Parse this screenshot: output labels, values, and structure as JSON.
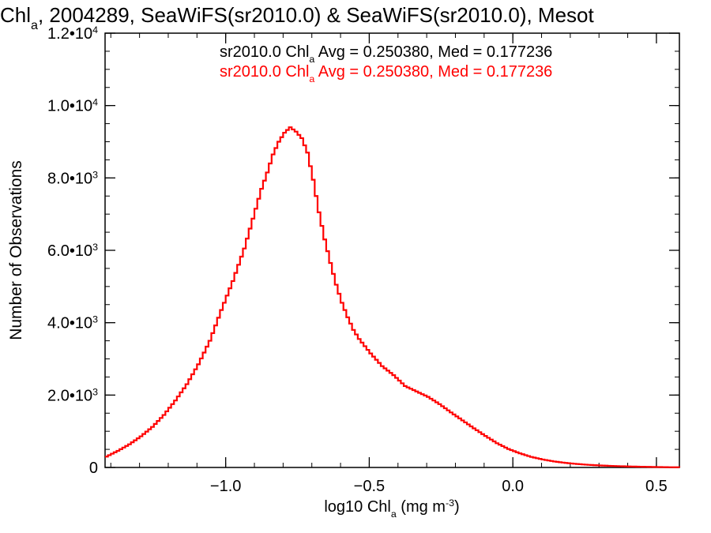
{
  "chart_data": {
    "type": "line",
    "title": {
      "parts": [
        {
          "text": "Chl",
          "style": "normal"
        },
        {
          "text": "a",
          "style": "sub"
        },
        {
          "text": ", 2004289, SeaWiFS(sr2010.0) & SeaWiFS(sr2010.0), Mesot",
          "style": "normal"
        }
      ]
    },
    "xlabel": {
      "parts": [
        {
          "text": "log10 Chl",
          "style": "normal"
        },
        {
          "text": "a",
          "style": "sub"
        },
        {
          "text": " (mg m",
          "style": "normal"
        },
        {
          "text": "-3",
          "style": "sup"
        },
        {
          "text": ")",
          "style": "normal"
        }
      ]
    },
    "ylabel": "Number of Observations",
    "xlim": [
      -1.42,
      0.58
    ],
    "ylim": [
      0,
      12000
    ],
    "x_ticks": [
      {
        "value": -1.0,
        "label": "−1.0"
      },
      {
        "value": -0.5,
        "label": "−0.5"
      },
      {
        "value": 0.0,
        "label": "0.0"
      },
      {
        "value": 0.5,
        "label": "0.5"
      }
    ],
    "x_minor_step": 0.1,
    "y_ticks": [
      {
        "value": 0,
        "mant": "0",
        "exp": ""
      },
      {
        "value": 2000,
        "mant": "2.0•10",
        "exp": "3"
      },
      {
        "value": 4000,
        "mant": "4.0•10",
        "exp": "3"
      },
      {
        "value": 6000,
        "mant": "6.0•10",
        "exp": "3"
      },
      {
        "value": 8000,
        "mant": "8.0•10",
        "exp": "3"
      },
      {
        "value": 10000,
        "mant": "1.0•10",
        "exp": "4"
      },
      {
        "value": 12000,
        "mant": "1.2•10",
        "exp": "4"
      }
    ],
    "y_minor_step": 500,
    "grid": false,
    "legend": [
      {
        "color": "#000000",
        "parts": [
          {
            "text": "sr2010.0 Chl",
            "style": "normal"
          },
          {
            "text": "a",
            "style": "sub"
          },
          {
            "text": " Avg = 0.250380, Med = 0.177236",
            "style": "normal"
          }
        ]
      },
      {
        "color": "#ff0000",
        "parts": [
          {
            "text": "sr2010.0 Chl",
            "style": "normal"
          },
          {
            "text": "a",
            "style": "sub"
          },
          {
            "text": " Avg = 0.250380, Med = 0.177236",
            "style": "normal"
          }
        ]
      }
    ],
    "series": [
      {
        "color": "#ff0000",
        "x": [
          -1.42,
          -1.38,
          -1.34,
          -1.3,
          -1.26,
          -1.22,
          -1.18,
          -1.14,
          -1.1,
          -1.06,
          -1.02,
          -0.98,
          -0.94,
          -0.9,
          -0.88,
          -0.86,
          -0.84,
          -0.82,
          -0.8,
          -0.78,
          -0.76,
          -0.74,
          -0.72,
          -0.7,
          -0.68,
          -0.66,
          -0.64,
          -0.62,
          -0.6,
          -0.58,
          -0.56,
          -0.54,
          -0.5,
          -0.46,
          -0.42,
          -0.38,
          -0.34,
          -0.3,
          -0.26,
          -0.22,
          -0.18,
          -0.14,
          -0.1,
          -0.06,
          -0.02,
          0.02,
          0.06,
          0.1,
          0.14,
          0.18,
          0.22,
          0.26,
          0.3,
          0.34,
          0.38,
          0.42,
          0.46,
          0.5,
          0.54,
          0.58
        ],
        "y": [
          300,
          460,
          640,
          860,
          1120,
          1450,
          1850,
          2300,
          2850,
          3500,
          4350,
          5150,
          6050,
          7150,
          7700,
          8150,
          8650,
          9000,
          9250,
          9400,
          9280,
          9100,
          8700,
          7950,
          7050,
          6300,
          5650,
          5050,
          4550,
          4150,
          3800,
          3550,
          3150,
          2800,
          2550,
          2250,
          2100,
          1950,
          1750,
          1520,
          1300,
          1080,
          870,
          670,
          510,
          390,
          290,
          220,
          165,
          125,
          95,
          72,
          55,
          42,
          32,
          24,
          18,
          12,
          7,
          4
        ]
      }
    ]
  }
}
